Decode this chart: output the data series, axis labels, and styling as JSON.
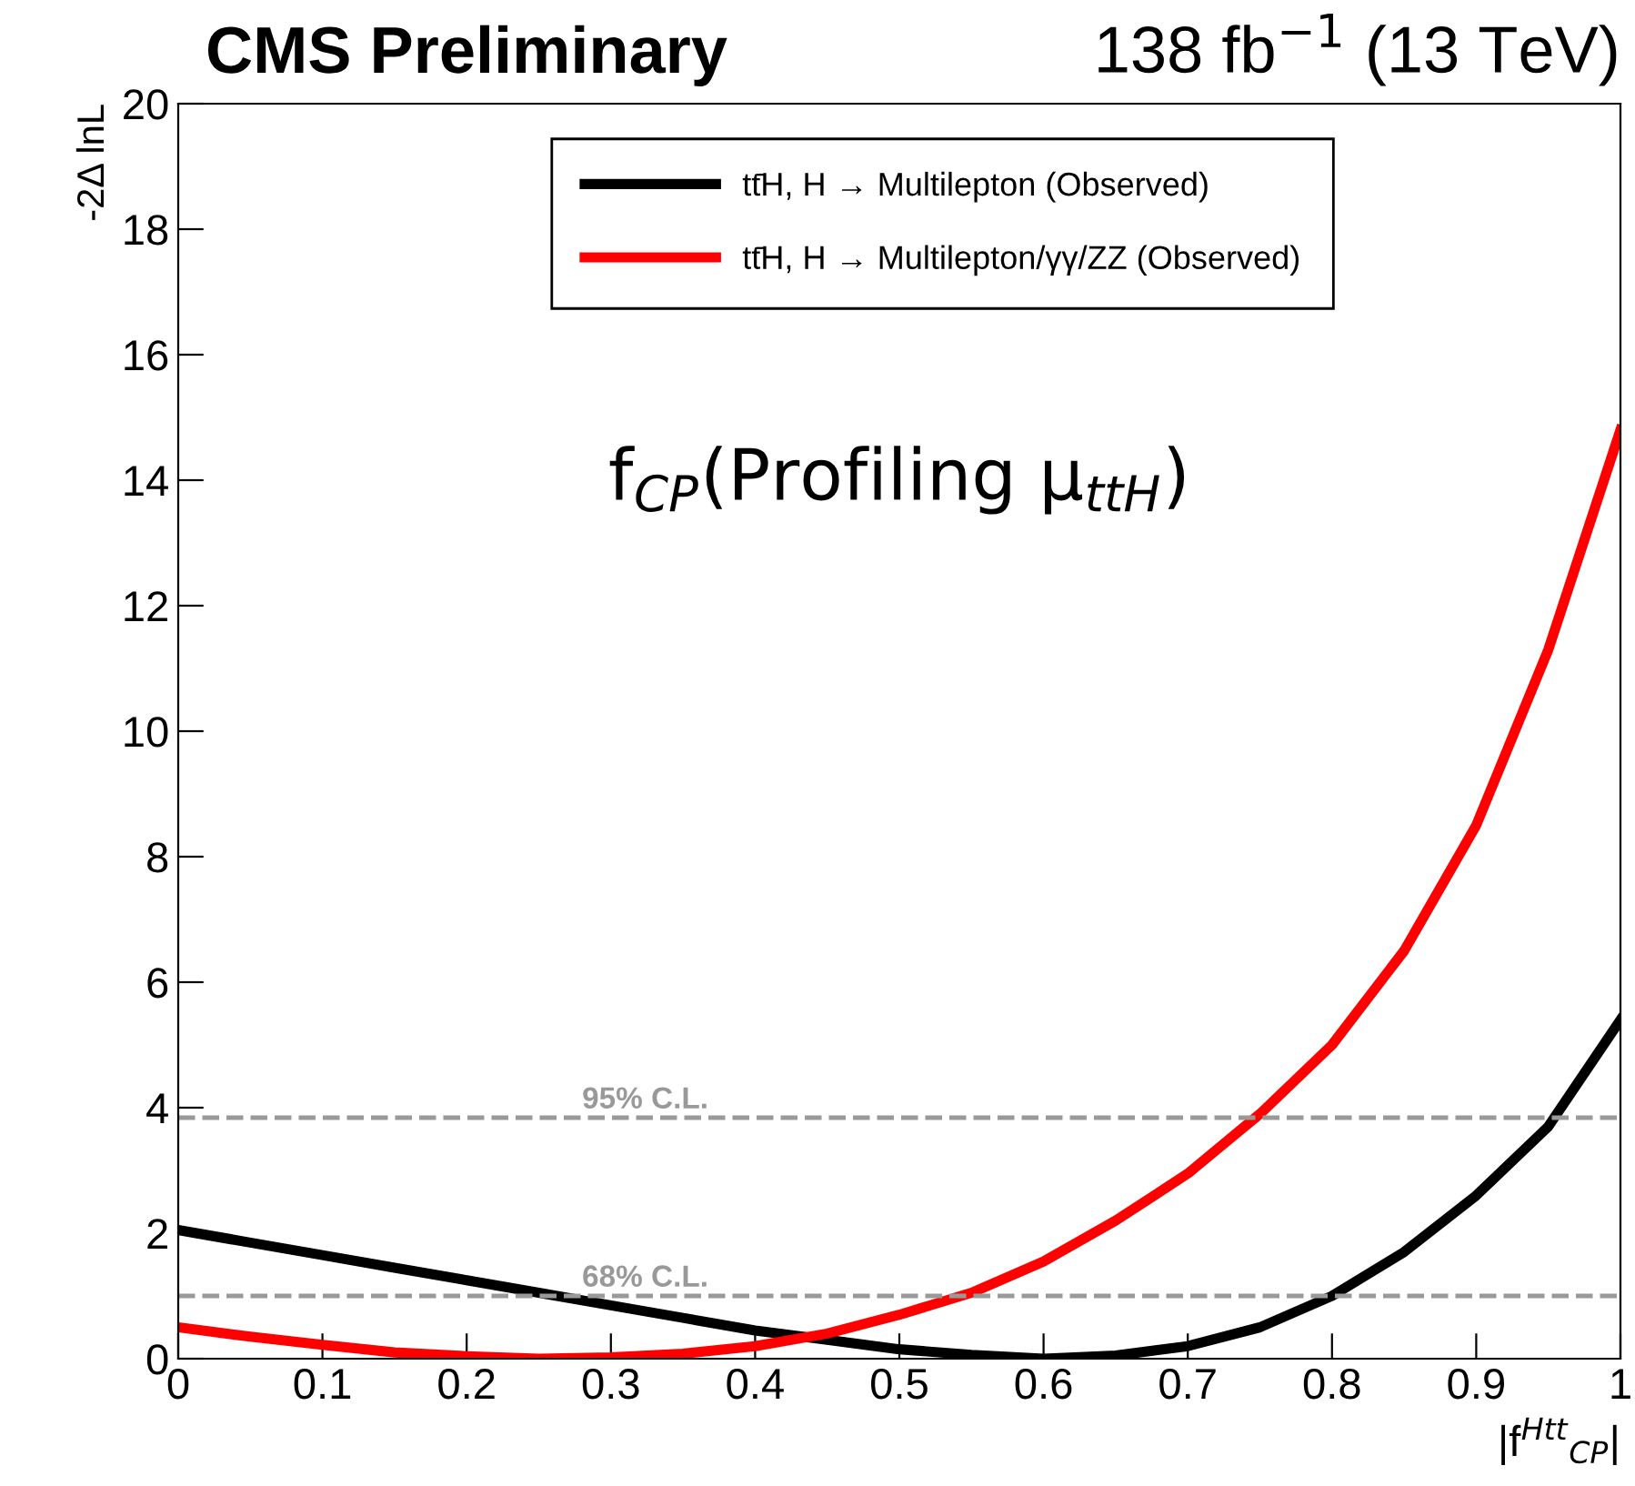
{
  "chart_data": {
    "type": "line",
    "title": "CMS Preliminary",
    "subtitle": "138 fb$^{−1}$ (13 TeV)",
    "xlabel": "|f$^{Htt}$$_{CP}$|",
    "ylabel": "-2Δ lnL",
    "annotations": [
      "f$_{CP}$(Profiling μ$_{ttH}$)"
    ],
    "x": [
      0,
      0.05,
      0.1,
      0.15,
      0.2,
      0.25,
      0.3,
      0.35,
      0.4,
      0.45,
      0.5,
      0.55,
      0.6,
      0.65,
      0.7,
      0.75,
      0.8,
      0.85,
      0.9,
      0.95,
      1.0
    ],
    "series": [
      {
        "name": "tt̄H, H → Multilepton (Observed)",
        "color": "#000000",
        "values": [
          2.05,
          1.85,
          1.65,
          1.45,
          1.25,
          1.05,
          0.85,
          0.65,
          0.45,
          0.3,
          0.15,
          0.06,
          0.0,
          0.05,
          0.2,
          0.5,
          1.0,
          1.7,
          2.6,
          3.7,
          5.4
        ]
      },
      {
        "name": "tt̄H, H → Multilepton/γγ/ZZ (Observed)",
        "color": "#ff0000",
        "values": [
          0.5,
          0.35,
          0.22,
          0.1,
          0.04,
          0.0,
          0.02,
          0.08,
          0.2,
          0.4,
          0.7,
          1.05,
          1.55,
          2.2,
          2.95,
          3.9,
          5.0,
          6.5,
          8.5,
          11.3,
          14.8
        ]
      }
    ],
    "ref_lines": [
      {
        "axis": "y",
        "value": 3.84,
        "label": "95% C.L.",
        "color": "#999999",
        "line_style": "dashed"
      },
      {
        "axis": "y",
        "value": 1,
        "label": "68% C.L.",
        "color": "#999999",
        "line_style": "dashed"
      }
    ],
    "xlim": [
      0,
      1
    ],
    "ylim": [
      0,
      20
    ],
    "xticks": [
      0,
      0.1,
      0.2,
      0.3,
      0.4,
      0.5,
      0.6,
      0.7,
      0.8,
      0.9,
      1
    ],
    "yticks": [
      0,
      2,
      4,
      6,
      8,
      10,
      12,
      14,
      16,
      18,
      20
    ],
    "legend": "top",
    "marker": "none",
    "line_style": "solid",
    "grid": false
  }
}
